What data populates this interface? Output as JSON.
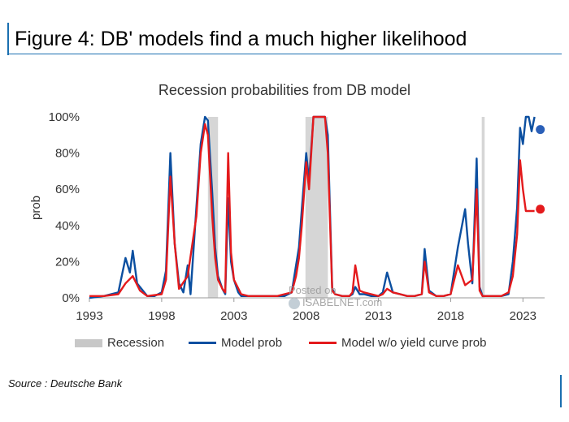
{
  "header": {
    "title": "Figure 4: DB' models find a much higher likelihood"
  },
  "footer": {
    "source": "Source : Deutsche Bank"
  },
  "watermark": {
    "line1": "Posted on",
    "line2": "ISABELNET.com"
  },
  "colors": {
    "accent": "#1a6fb0",
    "model": "#0b4fa0",
    "model_wo": "#e41a1c",
    "recession": "#c8c8c8",
    "dot_model": "#2a5fb8",
    "dot_wo": "#e41a1c"
  },
  "chart_data": {
    "type": "line",
    "title": "Recession probabilities from DB model",
    "xlabel": "",
    "ylabel": "prob",
    "xlim": [
      1993,
      2024.5
    ],
    "ylim": [
      0,
      100
    ],
    "x_ticks": [
      1993,
      1998,
      2003,
      2008,
      2013,
      2018,
      2023
    ],
    "x_tick_labels": [
      "1993",
      "1998",
      "2003",
      "2008",
      "2013",
      "2018",
      "2023"
    ],
    "y_ticks": [
      0,
      20,
      40,
      60,
      80,
      100
    ],
    "y_tick_labels": [
      "0%",
      "20%",
      "40%",
      "60%",
      "80%",
      "100%"
    ],
    "legend": [
      {
        "key": "recession",
        "label": "Recession"
      },
      {
        "key": "model",
        "label": "Model prob"
      },
      {
        "key": "model_wo",
        "label": "Model w/o yield curve prob"
      }
    ],
    "recessions": [
      [
        2001.2,
        2001.9
      ],
      [
        2007.95,
        2009.5
      ],
      [
        2020.15,
        2020.35
      ]
    ],
    "series": [
      {
        "name": "Model prob",
        "key": "model",
        "x": [
          1993,
          1994,
          1995,
          1995.5,
          1995.8,
          1996,
          1996.3,
          1997,
          1997.5,
          1998,
          1998.3,
          1998.6,
          1998.9,
          1999.2,
          1999.5,
          1999.8,
          2000,
          2000.4,
          2000.7,
          2001,
          2001.2,
          2001.5,
          2001.7,
          2001.9,
          2002.2,
          2002.4,
          2002.6,
          2002.8,
          2003,
          2003.3,
          2003.5,
          2004,
          2005,
          2006,
          2006.5,
          2007,
          2007.3,
          2007.5,
          2007.7,
          2008,
          2008.2,
          2008.5,
          2008.7,
          2009,
          2009.3,
          2009.5,
          2009.8,
          2010,
          2010.5,
          2011,
          2011.2,
          2011.4,
          2011.7,
          2012,
          2012.5,
          2013,
          2013.3,
          2013.6,
          2014,
          2014.5,
          2015,
          2015.5,
          2016,
          2016.2,
          2016.5,
          2017,
          2017.5,
          2018,
          2018.5,
          2019,
          2019.2,
          2019.5,
          2019.8,
          2020,
          2020.2,
          2020.4,
          2020.6,
          2021,
          2021.5,
          2022,
          2022.3,
          2022.6,
          2022.8,
          2023,
          2023.2,
          2023.4,
          2023.6,
          2023.8
        ],
        "y": [
          0,
          1,
          3,
          22,
          14,
          26,
          8,
          1,
          1,
          3,
          15,
          80,
          30,
          8,
          3,
          18,
          2,
          50,
          85,
          100,
          98,
          58,
          28,
          12,
          5,
          2,
          55,
          20,
          10,
          3,
          1,
          1,
          1,
          1,
          1,
          3,
          18,
          28,
          49,
          80,
          65,
          100,
          100,
          100,
          100,
          90,
          5,
          2,
          1,
          1,
          2,
          6,
          2,
          2,
          1,
          1,
          3,
          14,
          3,
          2,
          1,
          1,
          2,
          27,
          4,
          1,
          1,
          2,
          28,
          49,
          30,
          8,
          77,
          6,
          1,
          1,
          1,
          1,
          1,
          2,
          20,
          50,
          94,
          85,
          100,
          100,
          92,
          100
        ]
      },
      {
        "name": "Model w/o yield curve prob",
        "key": "model_wo",
        "x": [
          1993,
          1994,
          1995,
          1995.5,
          1996,
          1996.5,
          1997,
          1998,
          1998.3,
          1998.6,
          1998.9,
          1999.2,
          1999.8,
          2000.4,
          2000.7,
          2001,
          2001.2,
          2001.5,
          2001.7,
          2001.9,
          2002.2,
          2002.4,
          2002.6,
          2002.8,
          2003,
          2003.5,
          2004,
          2005,
          2006,
          2006.5,
          2007,
          2007.3,
          2007.5,
          2007.7,
          2008,
          2008.2,
          2008.5,
          2008.7,
          2009,
          2009.3,
          2009.5,
          2009.8,
          2010,
          2010.5,
          2011,
          2011.2,
          2011.4,
          2011.7,
          2012,
          2012.5,
          2013,
          2013.3,
          2013.6,
          2014,
          2014.5,
          2015,
          2015.5,
          2016,
          2016.2,
          2016.5,
          2017,
          2017.5,
          2018,
          2018.5,
          2019,
          2019.5,
          2019.8,
          2020,
          2020.2,
          2020.4,
          2020.6,
          2021,
          2021.5,
          2022,
          2022.3,
          2022.6,
          2022.8,
          2023,
          2023.2,
          2023.4,
          2023.6,
          2023.8
        ],
        "y": [
          1,
          1,
          2,
          8,
          12,
          4,
          1,
          2,
          10,
          67,
          30,
          5,
          12,
          45,
          80,
          96,
          90,
          45,
          22,
          10,
          5,
          3,
          80,
          25,
          10,
          2,
          1,
          1,
          1,
          2,
          3,
          12,
          22,
          40,
          75,
          60,
          100,
          100,
          100,
          100,
          80,
          4,
          2,
          1,
          1,
          3,
          18,
          4,
          3,
          2,
          1,
          2,
          5,
          3,
          2,
          1,
          1,
          2,
          20,
          3,
          1,
          1,
          2,
          18,
          7,
          10,
          60,
          4,
          1,
          1,
          1,
          1,
          1,
          3,
          12,
          35,
          76,
          60,
          48,
          48,
          48,
          48
        ]
      }
    ],
    "end_markers": [
      {
        "key": "model",
        "x": 2024.2,
        "y": 93
      },
      {
        "key": "model_wo",
        "x": 2024.2,
        "y": 49
      }
    ]
  }
}
